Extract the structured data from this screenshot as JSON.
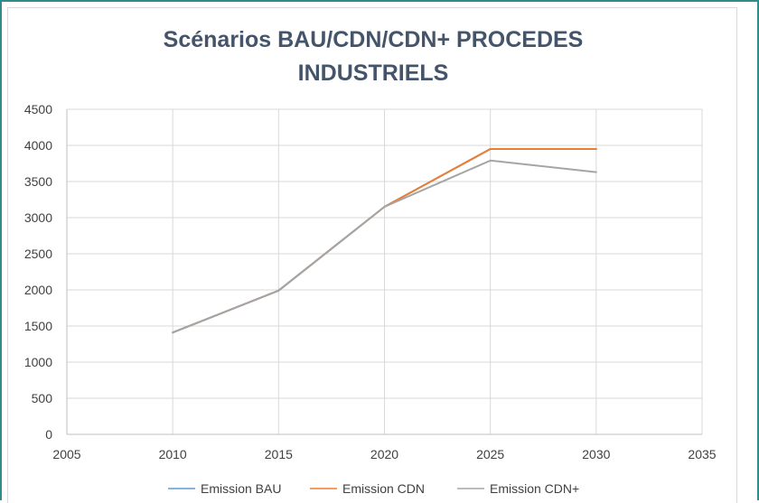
{
  "chart_data": {
    "type": "scatter",
    "mode": "lines",
    "title_lines": [
      "Scénarios BAU/CDN/CDN+ PROCEDES",
      "INDUSTRIELS"
    ],
    "xlabel": "",
    "ylabel": "",
    "xlim": [
      2005,
      2035
    ],
    "ylim": [
      0,
      4500
    ],
    "xticks": [
      "2005",
      "2010",
      "2015",
      "2020",
      "2025",
      "2030",
      "2035"
    ],
    "yticks": [
      "0",
      "500",
      "1000",
      "1500",
      "2000",
      "2500",
      "3000",
      "3500",
      "4000",
      "4500"
    ],
    "grid": true,
    "legend_position": "bottom",
    "series": [
      {
        "name": "Emission BAU",
        "color": "#5b9bd5",
        "x": [
          2010,
          2015,
          2020,
          2025,
          2030
        ],
        "y": [
          1410,
          1990,
          3150,
          3950,
          3950
        ]
      },
      {
        "name": "Emission CDN",
        "color": "#ed7d31",
        "x": [
          2010,
          2015,
          2020,
          2025,
          2030
        ],
        "y": [
          1410,
          1990,
          3150,
          3950,
          3950
        ]
      },
      {
        "name": "Emission CDN+",
        "color": "#a5a5a5",
        "x": [
          2010,
          2015,
          2020,
          2025,
          2030
        ],
        "y": [
          1410,
          1990,
          3150,
          3790,
          3630
        ]
      }
    ]
  }
}
